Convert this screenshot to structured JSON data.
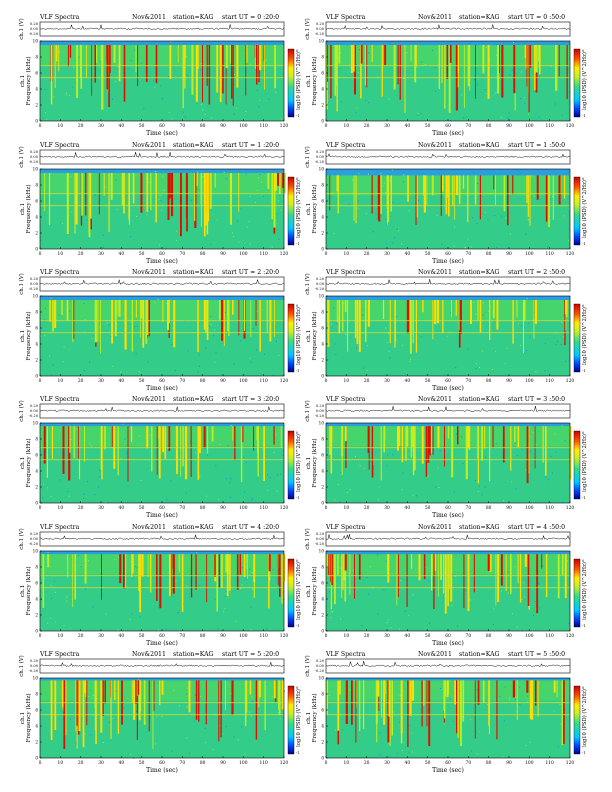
{
  "page": {
    "header_left": "VLF Spectra",
    "header_date": "Nov&2011",
    "header_station": "station=KAG",
    "time_prefix": "start  UT  ="
  },
  "axes": {
    "channel_label": "ch.1 (V)",
    "panel_label": "ch.1",
    "freq_label": "Frequency  (kHz)",
    "time_label": "Time  (sec)",
    "colorbar_label": "log10 (PSD) (V^2/Hz)",
    "waveform_ticks": [
      "0.20",
      "0.00",
      "-0.20"
    ]
  },
  "chart_data": [
    {
      "type": "heatmap",
      "start_ut": "0 :20:0",
      "x_range": [
        0,
        120
      ],
      "y_range": [
        0,
        10
      ],
      "x_ticks": [
        0,
        10,
        20,
        30,
        40,
        50,
        60,
        70,
        80,
        90,
        100,
        110,
        120
      ],
      "y_ticks": [
        0,
        2,
        4,
        6,
        8,
        10
      ],
      "colorbar_ticks": [
        "0",
        "-1"
      ],
      "intensity": 0.75,
      "band_top_khz": 9.5
    },
    {
      "type": "heatmap",
      "start_ut": "0 :50:0",
      "x_range": [
        0,
        120
      ],
      "y_range": [
        0,
        10
      ],
      "x_ticks": [
        0,
        10,
        20,
        30,
        40,
        50,
        60,
        70,
        80,
        90,
        100,
        110,
        120
      ],
      "y_ticks": [
        0,
        2,
        4,
        6,
        8,
        10
      ],
      "colorbar_ticks": [
        "0",
        "-1"
      ],
      "intensity": 0.85,
      "band_top_khz": 9.5
    },
    {
      "type": "heatmap",
      "start_ut": "1 :20:0",
      "x_range": [
        0,
        120
      ],
      "y_range": [
        0,
        10
      ],
      "x_ticks": [
        0,
        10,
        20,
        30,
        40,
        50,
        60,
        70,
        80,
        90,
        100,
        110,
        120
      ],
      "y_ticks": [
        0,
        2,
        4,
        6,
        8,
        10
      ],
      "colorbar_ticks": [
        "0",
        "-1"
      ],
      "intensity": 0.75,
      "band_top_khz": 9.5
    },
    {
      "type": "heatmap",
      "start_ut": "1 :50:0",
      "x_range": [
        0,
        120
      ],
      "y_range": [
        0,
        10
      ],
      "x_ticks": [
        0,
        10,
        20,
        30,
        40,
        50,
        60,
        70,
        80,
        90,
        100,
        110,
        120
      ],
      "y_ticks": [
        0,
        2,
        4,
        6,
        8,
        10
      ],
      "colorbar_ticks": [
        "0",
        "-1"
      ],
      "intensity": 0.45,
      "band_top_khz": 9.2
    },
    {
      "type": "heatmap",
      "start_ut": "2 :20:0",
      "x_range": [
        0,
        120
      ],
      "y_range": [
        0,
        10
      ],
      "x_ticks": [
        0,
        10,
        20,
        30,
        40,
        50,
        60,
        70,
        80,
        90,
        100,
        110,
        120
      ],
      "y_ticks": [
        0,
        2,
        4,
        6,
        8,
        10
      ],
      "colorbar_ticks": [
        "0",
        "-1"
      ],
      "intensity": 0.5,
      "band_top_khz": 9.5
    },
    {
      "type": "heatmap",
      "start_ut": "2 :50:0",
      "x_range": [
        0,
        120
      ],
      "y_range": [
        0,
        10
      ],
      "x_ticks": [
        0,
        10,
        20,
        30,
        40,
        50,
        60,
        70,
        80,
        90,
        100,
        110,
        120
      ],
      "y_ticks": [
        0,
        2,
        4,
        6,
        8,
        10
      ],
      "colorbar_ticks": [
        "0",
        "-1"
      ],
      "intensity": 0.5,
      "band_top_khz": 9.5
    },
    {
      "type": "heatmap",
      "start_ut": "3 :20:0",
      "x_range": [
        0,
        120
      ],
      "y_range": [
        0,
        10
      ],
      "x_ticks": [
        0,
        10,
        20,
        30,
        40,
        50,
        60,
        70,
        80,
        90,
        100,
        110,
        120
      ],
      "y_ticks": [
        0,
        2,
        4,
        6,
        8,
        10
      ],
      "colorbar_ticks": [
        "0",
        "-1"
      ],
      "intensity": 0.55,
      "band_top_khz": 9.6
    },
    {
      "type": "heatmap",
      "start_ut": "3 :50:0",
      "x_range": [
        0,
        120
      ],
      "y_range": [
        0,
        10
      ],
      "x_ticks": [
        0,
        10,
        20,
        30,
        40,
        50,
        60,
        70,
        80,
        90,
        100,
        110,
        120
      ],
      "y_ticks": [
        0,
        2,
        4,
        6,
        8,
        10
      ],
      "colorbar_ticks": [
        "0",
        "-1"
      ],
      "intensity": 0.6,
      "band_top_khz": 9.6
    },
    {
      "type": "heatmap",
      "start_ut": "4 :20:0",
      "x_range": [
        0,
        120
      ],
      "y_range": [
        0,
        10
      ],
      "x_ticks": [
        0,
        10,
        20,
        30,
        40,
        50,
        60,
        70,
        80,
        90,
        100,
        110,
        120
      ],
      "y_ticks": [
        0,
        2,
        4,
        6,
        8,
        10
      ],
      "colorbar_ticks": [
        "0",
        "-1"
      ],
      "intensity": 0.6,
      "band_top_khz": 9.6
    },
    {
      "type": "heatmap",
      "start_ut": "4 :50:0",
      "x_range": [
        0,
        120
      ],
      "y_range": [
        0,
        10
      ],
      "x_ticks": [
        0,
        10,
        20,
        30,
        40,
        50,
        60,
        70,
        80,
        90,
        100,
        110,
        120
      ],
      "y_ticks": [
        0,
        2,
        4,
        6,
        8,
        10
      ],
      "colorbar_ticks": [
        "0",
        "-1"
      ],
      "intensity": 0.65,
      "band_top_khz": 9.6
    },
    {
      "type": "heatmap",
      "start_ut": "5 :20:0",
      "x_range": [
        0,
        120
      ],
      "y_range": [
        0,
        10
      ],
      "x_ticks": [
        0,
        10,
        20,
        30,
        40,
        50,
        60,
        70,
        80,
        90,
        100,
        110,
        120
      ],
      "y_ticks": [
        0,
        2,
        4,
        6,
        8,
        10
      ],
      "colorbar_ticks": [
        "0",
        "-1"
      ],
      "intensity": 0.85,
      "band_top_khz": 9.7
    },
    {
      "type": "heatmap",
      "start_ut": "5 :50:0",
      "x_range": [
        0,
        120
      ],
      "y_range": [
        0,
        10
      ],
      "x_ticks": [
        0,
        10,
        20,
        30,
        40,
        50,
        60,
        70,
        80,
        90,
        100,
        110,
        120
      ],
      "y_ticks": [
        0,
        2,
        4,
        6,
        8,
        10
      ],
      "colorbar_ticks": [
        "0",
        "-1"
      ],
      "intensity": 0.8,
      "band_top_khz": 9.7
    }
  ]
}
